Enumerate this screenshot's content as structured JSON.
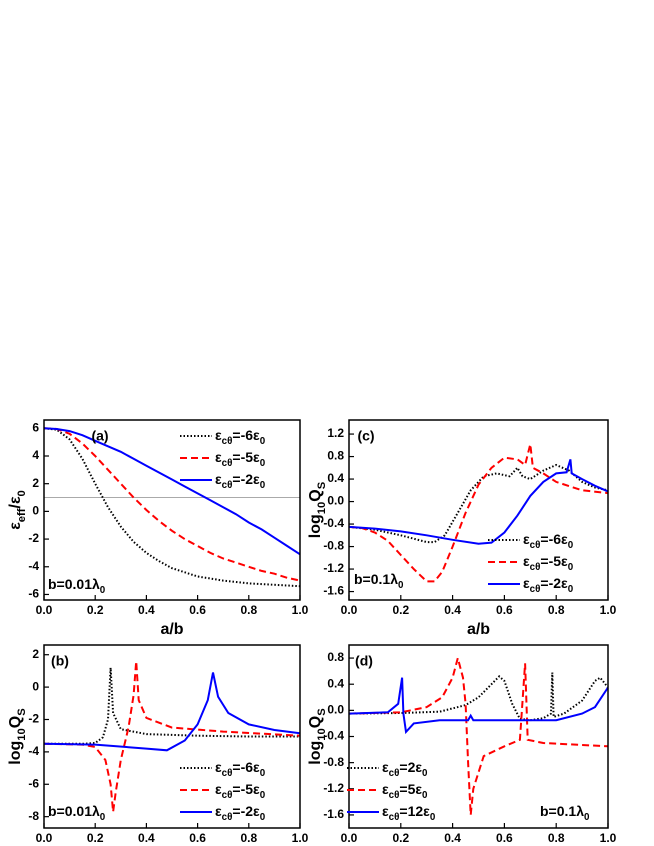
{
  "chart_data": [
    {
      "type": "line",
      "panel_label": "(a)",
      "annotation": [
        "b=0.01λ",
        "0"
      ],
      "xlabel": "a/b",
      "ylabel": [
        "ε",
        "eff",
        "/ε",
        "0"
      ],
      "xlim": [
        0,
        1
      ],
      "ylim": [
        -6.4,
        6.6
      ],
      "xticks": [
        {
          "value": 0,
          "label": "0.0"
        },
        0.2,
        0.4,
        0.6,
        0.8,
        {
          "value": 1,
          "label": "1.0"
        }
      ],
      "yticks": [
        -6,
        -4,
        -2,
        0,
        2,
        4,
        6
      ],
      "hline": 1,
      "hline_color": "#aaaaaa",
      "legend": "upper right",
      "series": [
        {
          "name": [
            "ε",
            "cθ",
            "=-6ε",
            "0"
          ],
          "color": "#000000",
          "dash": "dotted",
          "x": [
            0,
            0.05,
            0.1,
            0.15,
            0.2,
            0.25,
            0.3,
            0.35,
            0.4,
            0.45,
            0.5,
            0.55,
            0.6,
            0.65,
            0.7,
            0.75,
            0.8,
            0.85,
            0.9,
            0.95,
            1
          ],
          "values": [
            6,
            5.9,
            5.2,
            3.8,
            2,
            0.3,
            -1.1,
            -2.2,
            -3,
            -3.6,
            -4.1,
            -4.4,
            -4.7,
            -4.85,
            -5,
            -5.1,
            -5.2,
            -5.25,
            -5.3,
            -5.35,
            -5.4
          ]
        },
        {
          "name": [
            "ε",
            "cθ",
            "=-5ε",
            "0"
          ],
          "color": "#ff0000",
          "dash": "dashed",
          "x": [
            0,
            0.05,
            0.1,
            0.15,
            0.2,
            0.25,
            0.3,
            0.35,
            0.4,
            0.45,
            0.5,
            0.55,
            0.6,
            0.65,
            0.7,
            0.75,
            0.8,
            0.85,
            0.9,
            0.95,
            1
          ],
          "values": [
            6,
            5.95,
            5.6,
            4.9,
            4,
            3,
            2,
            1,
            0.1,
            -0.7,
            -1.4,
            -2,
            -2.5,
            -3,
            -3.4,
            -3.7,
            -4,
            -4.3,
            -4.5,
            -4.8,
            -5
          ]
        },
        {
          "name": [
            "ε",
            "cθ",
            "=-2ε",
            "0"
          ],
          "color": "#0000ff",
          "dash": "solid",
          "x": [
            0,
            0.05,
            0.1,
            0.15,
            0.2,
            0.25,
            0.3,
            0.35,
            0.4,
            0.45,
            0.5,
            0.55,
            0.6,
            0.65,
            0.7,
            0.75,
            0.8,
            0.85,
            0.9,
            0.95,
            1
          ],
          "values": [
            6,
            5.95,
            5.8,
            5.5,
            5.1,
            4.7,
            4.3,
            3.8,
            3.3,
            2.8,
            2.3,
            1.8,
            1.3,
            0.8,
            0.3,
            -0.2,
            -0.8,
            -1.3,
            -1.9,
            -2.5,
            -3.1
          ]
        }
      ]
    },
    {
      "type": "line",
      "panel_label": "(c)",
      "annotation": [
        "b=0.1λ",
        "0"
      ],
      "xlabel": "a/b",
      "ylabel": [
        "log",
        "10",
        "Q",
        "S"
      ],
      "xlim": [
        0,
        1
      ],
      "ylim": [
        -1.75,
        1.45
      ],
      "xticks": [
        {
          "value": 0,
          "label": "0.0"
        },
        0.2,
        0.4,
        0.6,
        0.8,
        {
          "value": 1,
          "label": "1.0"
        }
      ],
      "yticks": [
        -1.6,
        -1.2,
        -0.8,
        -0.4,
        {
          "value": 0,
          "label": "0.0"
        },
        0.4,
        0.8,
        1.2
      ],
      "legend": "lower right",
      "series": [
        {
          "name": [
            "ε",
            "cθ",
            "=-6ε",
            "0"
          ],
          "color": "#000000",
          "dash": "dotted",
          "x": [
            0,
            0.1,
            0.2,
            0.3,
            0.33,
            0.37,
            0.42,
            0.47,
            0.52,
            0.57,
            0.62,
            0.65,
            0.67,
            0.7,
            0.75,
            0.8,
            0.85,
            0.9,
            0.95,
            1
          ],
          "values": [
            -0.45,
            -0.5,
            -0.6,
            -0.72,
            -0.72,
            -0.6,
            -0.2,
            0.2,
            0.45,
            0.5,
            0.45,
            0.6,
            0.45,
            0.4,
            0.55,
            0.65,
            0.55,
            0.35,
            0.25,
            0.2
          ]
        },
        {
          "name": [
            "ε",
            "cθ",
            "=-5ε",
            "0"
          ],
          "color": "#ff0000",
          "dash": "dashed",
          "x": [
            0,
            0.05,
            0.1,
            0.15,
            0.2,
            0.25,
            0.3,
            0.33,
            0.36,
            0.4,
            0.45,
            0.5,
            0.55,
            0.6,
            0.65,
            0.68,
            0.7,
            0.71,
            0.75,
            0.8,
            0.9,
            1
          ],
          "values": [
            -0.45,
            -0.47,
            -0.55,
            -0.7,
            -0.95,
            -1.2,
            -1.42,
            -1.42,
            -1.25,
            -0.8,
            -0.2,
            0.3,
            0.6,
            0.78,
            0.75,
            0.65,
            1.02,
            0.6,
            0.5,
            0.35,
            0.2,
            0.15
          ]
        },
        {
          "name": [
            "ε",
            "cθ",
            "=-2ε",
            "0"
          ],
          "color": "#0000ff",
          "dash": "solid",
          "x": [
            0,
            0.1,
            0.2,
            0.3,
            0.4,
            0.5,
            0.55,
            0.6,
            0.65,
            0.7,
            0.75,
            0.8,
            0.84,
            0.855,
            0.86,
            0.9,
            0.95,
            1
          ],
          "values": [
            -0.45,
            -0.48,
            -0.53,
            -0.6,
            -0.68,
            -0.75,
            -0.73,
            -0.55,
            -0.25,
            0.1,
            0.35,
            0.5,
            0.52,
            0.75,
            0.5,
            0.4,
            0.28,
            0.18
          ]
        }
      ]
    },
    {
      "type": "line",
      "panel_label": "(b)",
      "annotation": [
        "b=0.01λ",
        "0"
      ],
      "ylabel": [
        "log",
        "10",
        "Q",
        "S"
      ],
      "xlim": [
        0,
        1
      ],
      "ylim": [
        -8.7,
        2.6
      ],
      "xticks": [
        {
          "value": 0,
          "label": "0.0"
        },
        0.2,
        0.4,
        0.6,
        0.8,
        {
          "value": 1,
          "label": "1.0"
        }
      ],
      "yticks": [
        -8,
        -6,
        -4,
        -2,
        0,
        2
      ],
      "legend": "lower right",
      "series": [
        {
          "name": [
            "ε",
            "cθ",
            "=-6ε",
            "0"
          ],
          "color": "#000000",
          "dash": "dotted",
          "x": [
            0,
            0.15,
            0.2,
            0.23,
            0.25,
            0.26,
            0.27,
            0.3,
            0.4,
            0.6,
            0.8,
            1
          ],
          "values": [
            -3.5,
            -3.5,
            -3.45,
            -3.1,
            -2,
            1.2,
            -1.6,
            -2.6,
            -2.9,
            -3,
            -3.05,
            -3.05
          ]
        },
        {
          "name": [
            "ε",
            "cθ",
            "=-5ε",
            "0"
          ],
          "color": "#ff0000",
          "dash": "dashed",
          "x": [
            0,
            0.15,
            0.2,
            0.24,
            0.26,
            0.27,
            0.28,
            0.3,
            0.33,
            0.35,
            0.36,
            0.37,
            0.4,
            0.5,
            0.7,
            1
          ],
          "values": [
            -3.5,
            -3.55,
            -3.7,
            -4.5,
            -6,
            -7.7,
            -6.5,
            -4.5,
            -2.5,
            -0.5,
            1.6,
            -0.8,
            -1.9,
            -2.5,
            -2.75,
            -3
          ]
        },
        {
          "name": [
            "ε",
            "cθ",
            "=-2ε",
            "0"
          ],
          "color": "#0000ff",
          "dash": "solid",
          "x": [
            0,
            0.2,
            0.4,
            0.48,
            0.55,
            0.6,
            0.64,
            0.66,
            0.68,
            0.72,
            0.8,
            0.9,
            1
          ],
          "values": [
            -3.5,
            -3.55,
            -3.8,
            -3.9,
            -3.3,
            -2.3,
            -0.8,
            0.9,
            -0.6,
            -1.6,
            -2.3,
            -2.65,
            -2.85
          ]
        }
      ]
    },
    {
      "type": "line",
      "panel_label": "(d)",
      "annotation": [
        "b=0.1λ",
        "0"
      ],
      "ylabel": [
        "log",
        "10",
        "Q",
        "S"
      ],
      "xlim": [
        0,
        1
      ],
      "ylim": [
        -1.8,
        1.0
      ],
      "xticks": [
        {
          "value": 0,
          "label": "0.0"
        },
        0.2,
        0.4,
        0.6,
        0.8,
        {
          "value": 1,
          "label": "1.0"
        }
      ],
      "yticks": [
        -1.6,
        -1.2,
        -0.8,
        -0.4,
        {
          "value": 0,
          "label": "0.0"
        },
        0.4,
        0.8
      ],
      "legend": "lower left",
      "series": [
        {
          "name": [
            "ε",
            "cθ",
            "=2ε",
            "0"
          ],
          "color": "#000000",
          "dash": "dotted",
          "x": [
            0,
            0.2,
            0.35,
            0.45,
            0.5,
            0.55,
            0.58,
            0.6,
            0.63,
            0.66,
            0.7,
            0.75,
            0.78,
            0.785,
            0.79,
            0.83,
            0.9,
            0.95,
            0.97,
            1
          ],
          "values": [
            -0.05,
            -0.04,
            -0.02,
            0.08,
            0.2,
            0.4,
            0.52,
            0.45,
            0.1,
            -0.13,
            -0.15,
            -0.12,
            -0.05,
            0.58,
            -0.1,
            -0.05,
            0.15,
            0.45,
            0.5,
            0.35
          ]
        },
        {
          "name": [
            "ε",
            "cθ",
            "=5ε",
            "0"
          ],
          "color": "#ff0000",
          "dash": "dashed",
          "x": [
            0,
            0.2,
            0.3,
            0.36,
            0.4,
            0.42,
            0.44,
            0.45,
            0.46,
            0.47,
            0.48,
            0.52,
            0.6,
            0.66,
            0.68,
            0.69,
            0.75,
            0.85,
            1
          ],
          "values": [
            -0.05,
            -0.03,
            0.05,
            0.2,
            0.5,
            0.8,
            0.5,
            0.1,
            -0.8,
            -1.6,
            -1.2,
            -0.7,
            -0.55,
            -0.45,
            0.72,
            -0.45,
            -0.5,
            -0.52,
            -0.55
          ]
        },
        {
          "name": [
            "ε",
            "cθ",
            "=12ε",
            "0"
          ],
          "color": "#0000ff",
          "dash": "solid",
          "x": [
            0,
            0.15,
            0.19,
            0.205,
            0.21,
            0.22,
            0.25,
            0.35,
            0.46,
            0.47,
            0.48,
            0.6,
            0.8,
            0.9,
            0.95,
            1
          ],
          "values": [
            -0.05,
            -0.03,
            0.1,
            0.5,
            -0.05,
            -0.33,
            -0.2,
            -0.15,
            -0.15,
            -0.08,
            -0.15,
            -0.15,
            -0.15,
            -0.05,
            0.05,
            0.35
          ]
        }
      ]
    }
  ]
}
